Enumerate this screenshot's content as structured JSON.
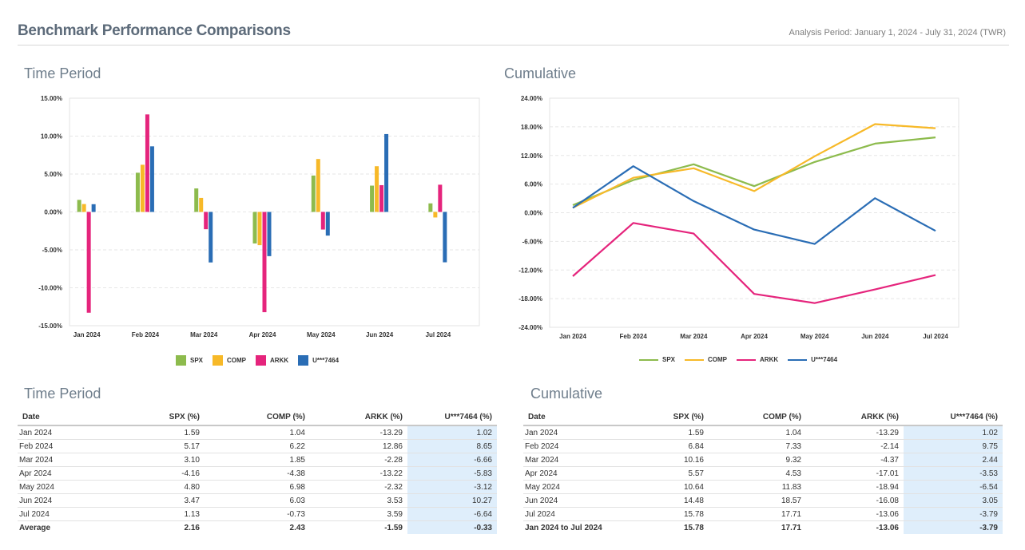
{
  "header": {
    "title": "Benchmark Performance Comparisons",
    "analysis_period": "Analysis Period: January 1, 2024 - July 31, 2024 (TWR)"
  },
  "sections": {
    "time_period_chart_title": "Time Period",
    "cumulative_chart_title": "Cumulative",
    "time_period_table_title": "Time Period",
    "cumulative_table_title": "Cumulative"
  },
  "colors": {
    "SPX": "#8dbb4d",
    "COMP": "#f7b928",
    "ARKK": "#e5247c",
    "U***7464": "#2a6db5",
    "highlight": "#dfeefb"
  },
  "chart_data": [
    {
      "type": "bar",
      "title": "Time Period",
      "categories": [
        "Jan 2024",
        "Feb 2024",
        "Mar 2024",
        "Apr 2024",
        "May 2024",
        "Jun 2024",
        "Jul 2024"
      ],
      "series": [
        {
          "name": "SPX",
          "values": [
            1.59,
            5.17,
            3.1,
            -4.16,
            4.8,
            3.47,
            1.13
          ]
        },
        {
          "name": "COMP",
          "values": [
            1.04,
            6.22,
            1.85,
            -4.38,
            6.98,
            6.03,
            -0.73
          ]
        },
        {
          "name": "ARKK",
          "values": [
            -13.29,
            12.86,
            -2.28,
            -13.22,
            -2.32,
            3.53,
            3.59
          ]
        },
        {
          "name": "U***7464",
          "values": [
            1.02,
            8.65,
            -6.66,
            -5.83,
            -3.12,
            10.27,
            -6.64
          ]
        }
      ],
      "ylim": [
        -15,
        15
      ],
      "yticks": [
        "15.00%",
        "10.00%",
        "5.00%",
        "0.00%",
        "-5.00%",
        "-10.00%",
        "-15.00%"
      ],
      "ytick_values": [
        15,
        10,
        5,
        0,
        -5,
        -10,
        -15
      ],
      "grid": true,
      "legend": "bottom"
    },
    {
      "type": "line",
      "title": "Cumulative",
      "categories": [
        "Jan 2024",
        "Feb 2024",
        "Mar 2024",
        "Apr 2024",
        "May 2024",
        "Jun 2024",
        "Jul 2024"
      ],
      "series": [
        {
          "name": "SPX",
          "values": [
            1.59,
            6.84,
            10.16,
            5.57,
            10.64,
            14.48,
            15.78
          ]
        },
        {
          "name": "COMP",
          "values": [
            1.04,
            7.33,
            9.32,
            4.53,
            11.83,
            18.57,
            17.71
          ]
        },
        {
          "name": "ARKK",
          "values": [
            -13.29,
            -2.14,
            -4.37,
            -17.01,
            -18.94,
            -16.08,
            -13.06
          ]
        },
        {
          "name": "U***7464",
          "values": [
            1.02,
            9.75,
            2.44,
            -3.53,
            -6.54,
            3.05,
            -3.79
          ]
        }
      ],
      "ylim": [
        -24,
        24
      ],
      "yticks": [
        "24.00%",
        "18.00%",
        "12.00%",
        "6.00%",
        "0.00%",
        "-6.00%",
        "-12.00%",
        "-18.00%",
        "-24.00%"
      ],
      "ytick_values": [
        24,
        18,
        12,
        6,
        0,
        -6,
        -12,
        -18,
        -24
      ],
      "grid": true,
      "legend": "bottom"
    }
  ],
  "time_period_table": {
    "headers": [
      "Date",
      "SPX (%)",
      "COMP (%)",
      "ARKK (%)",
      "U***7464 (%)"
    ],
    "rows": [
      [
        "Jan 2024",
        "1.59",
        "1.04",
        "-13.29",
        "1.02"
      ],
      [
        "Feb 2024",
        "5.17",
        "6.22",
        "12.86",
        "8.65"
      ],
      [
        "Mar 2024",
        "3.10",
        "1.85",
        "-2.28",
        "-6.66"
      ],
      [
        "Apr 2024",
        "-4.16",
        "-4.38",
        "-13.22",
        "-5.83"
      ],
      [
        "May 2024",
        "4.80",
        "6.98",
        "-2.32",
        "-3.12"
      ],
      [
        "Jun 2024",
        "3.47",
        "6.03",
        "3.53",
        "10.27"
      ],
      [
        "Jul 2024",
        "1.13",
        "-0.73",
        "3.59",
        "-6.64"
      ]
    ],
    "summary": [
      "Average",
      "2.16",
      "2.43",
      "-1.59",
      "-0.33"
    ]
  },
  "cumulative_table": {
    "headers": [
      "Date",
      "SPX (%)",
      "COMP (%)",
      "ARKK (%)",
      "U***7464 (%)"
    ],
    "rows": [
      [
        "Jan 2024",
        "1.59",
        "1.04",
        "-13.29",
        "1.02"
      ],
      [
        "Feb 2024",
        "6.84",
        "7.33",
        "-2.14",
        "9.75"
      ],
      [
        "Mar 2024",
        "10.16",
        "9.32",
        "-4.37",
        "2.44"
      ],
      [
        "Apr 2024",
        "5.57",
        "4.53",
        "-17.01",
        "-3.53"
      ],
      [
        "May 2024",
        "10.64",
        "11.83",
        "-18.94",
        "-6.54"
      ],
      [
        "Jun 2024",
        "14.48",
        "18.57",
        "-16.08",
        "3.05"
      ],
      [
        "Jul 2024",
        "15.78",
        "17.71",
        "-13.06",
        "-3.79"
      ]
    ],
    "summary": [
      "Jan 2024 to Jul 2024",
      "15.78",
      "17.71",
      "-13.06",
      "-3.79"
    ]
  }
}
